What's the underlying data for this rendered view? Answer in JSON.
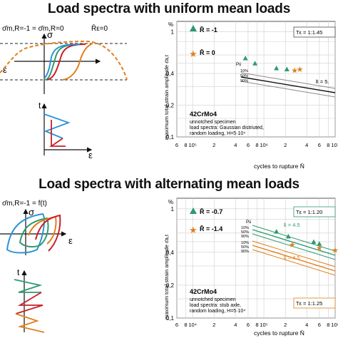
{
  "titles": {
    "top": "Load spectra with uniform mean loads",
    "bottom": "Load spectra with alternating mean loads"
  },
  "top_schematic": {
    "sigma_label": "σ",
    "epsilon_label": "ε",
    "t_label": "t",
    "eq_sigma": "σ̄m,R=-1 = σ̄m,R=0",
    "eq_R": "R̄ε=0"
  },
  "bottom_schematic": {
    "sigma_label": "σ",
    "epsilon_label": "ε",
    "t_label": "t",
    "eq_sigma": "σ̄m,R=-1 = f(t)"
  },
  "colors": {
    "green": "#2e9a6e",
    "orange": "#e0801c",
    "red": "#c8202a",
    "blue": "#2a93d8",
    "green_lines": "#2e9a6e",
    "gray_lines": "#8a8a8a"
  },
  "chart_data": [
    {
      "type": "scatter",
      "xlabel": "cycles to rupture N̄",
      "ylabel": "maximum total strain amplitude ε̄a,t",
      "y_unit": "%",
      "y_tick_labels": [
        "1",
        "0,4",
        "0,2",
        "0,1"
      ],
      "x_tick_labels": [
        "6",
        "8",
        "10⁵",
        "2",
        "4",
        "6",
        "8",
        "10⁶",
        "2",
        "4",
        "6",
        "8",
        "10⁷"
      ],
      "legend": [
        {
          "marker": "triangle",
          "color": "green",
          "label": "R̄ = -1"
        },
        {
          "marker": "star",
          "color": "orange",
          "label": "R̄ = 0"
        }
      ],
      "scatter_box": "Tε = 1:1.45",
      "pu_labels": [
        "Pü",
        "10%",
        "50%",
        "90%"
      ],
      "slope_label": "k̄ = 5.",
      "annotations": [
        "42CrMo4",
        "unnotched specimen",
        "load spectra: Gaussian distriuted,",
        "random loading,  H=5·10⁴"
      ],
      "series": [
        {
          "name": "R̄ = -1",
          "x": [
            550000.0,
            750000.0,
            1500000.0,
            2100000.0
          ],
          "y": [
            0.56,
            0.5,
            0.45,
            0.44
          ]
        },
        {
          "name": "R̄ = 0",
          "x": [
            2700000.0,
            3200000.0
          ],
          "y": [
            0.43,
            0.44
          ]
        }
      ]
    },
    {
      "type": "scatter",
      "xlabel": "cycles to rupture N̄",
      "ylabel": "maximum total strain amplitude ε̄a,t",
      "y_unit": "%",
      "y_tick_labels": [
        "1",
        "0,4",
        "0,2",
        "0,1"
      ],
      "x_tick_labels": [
        "6",
        "8",
        "10⁴",
        "2",
        "4",
        "6",
        "8",
        "10⁵",
        "2",
        "4",
        "6",
        "8",
        "10⁶"
      ],
      "legend": [
        {
          "marker": "triangle",
          "color": "green",
          "label": "R̄ = -0.7"
        },
        {
          "marker": "star",
          "color": "orange",
          "label": "R̄ = -1.4"
        }
      ],
      "scatter_boxes": [
        "Tε = 1:1.20",
        "Tε = 1:1.25"
      ],
      "pu_labels_upper": [
        "Pü",
        "10%",
        "50%",
        "90%"
      ],
      "pu_labels_lower": [
        "10%",
        "50%",
        "90%"
      ],
      "slope_labels": [
        "k̄ = 4.5",
        "k̄ = 4.5"
      ],
      "annotations": [
        "42CrMo4",
        "unnotched specimen",
        "load spectra: stub axle,",
        "random loading,  H=5·10⁴"
      ],
      "series": [
        {
          "name": "R̄ = -0.7",
          "x": [
            150000.0,
            220000.0,
            500000.0,
            600000.0
          ],
          "y": [
            0.62,
            0.56,
            0.5,
            0.48
          ]
        },
        {
          "name": "R̄ = -1.4",
          "x": [
            250000.0,
            600000.0,
            1000000.0
          ],
          "y": [
            0.47,
            0.44,
            0.42
          ]
        }
      ]
    }
  ]
}
